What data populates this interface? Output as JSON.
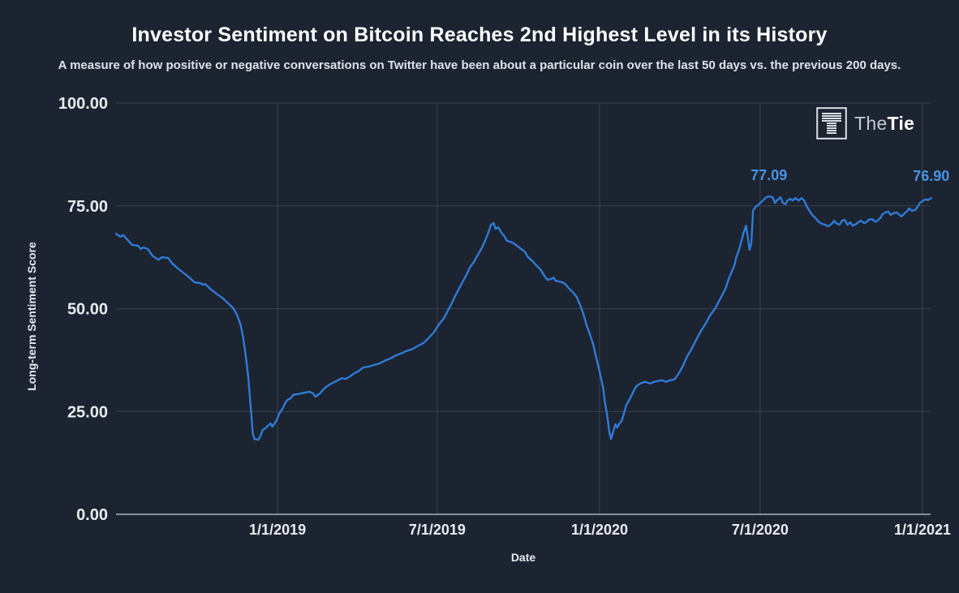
{
  "header": {
    "title": "Investor Sentiment on Bitcoin Reaches 2nd Highest Level in its History",
    "subtitle": "A measure of how positive or negative conversations on Twitter have been about a particular coin over the last 50 days vs. the previous 200 days."
  },
  "logo": {
    "icon": "striped-t-square-icon",
    "the_label": "The",
    "tie_label": "Tie"
  },
  "colors": {
    "background": "#1c2331",
    "line": "#2f7cd6",
    "annotation": "#4795e2",
    "grid": "#3a4250",
    "axis_line": "#c9ced6",
    "tick_text": "#e9ebee",
    "title_text": "#ffffff"
  },
  "chart_data": {
    "type": "line",
    "title": "Investor Sentiment on Bitcoin Reaches 2nd Highest Level in its History",
    "xlabel": "Date",
    "ylabel": "Long-term Sentiment Score",
    "ylim": [
      0,
      100
    ],
    "grid": true,
    "legend": "none",
    "x_range": [
      "2018-07-01",
      "2021-01-13"
    ],
    "y_ticks": [
      {
        "value": 0,
        "label": "0.00"
      },
      {
        "value": 25,
        "label": "25.00"
      },
      {
        "value": 50,
        "label": "50.00"
      },
      {
        "value": 75,
        "label": "75.00"
      },
      {
        "value": 100,
        "label": "100.00"
      }
    ],
    "x_ticks": [
      {
        "date": "2019-01-01",
        "label": "1/1/2019"
      },
      {
        "date": "2019-07-01",
        "label": "7/1/2019"
      },
      {
        "date": "2020-01-01",
        "label": "1/1/2020"
      },
      {
        "date": "2020-07-01",
        "label": "7/1/2020"
      },
      {
        "date": "2021-01-01",
        "label": "1/1/2021"
      }
    ],
    "annotations": [
      {
        "label": "77.09",
        "date": "2020-07-11",
        "value": 77.09
      },
      {
        "label": "76.90",
        "date": "2021-01-11",
        "value": 76.9
      }
    ],
    "series": [
      {
        "name": "Long-term Sentiment Score",
        "points": [
          [
            "2018-07-02",
            68.2
          ],
          [
            "2018-07-07",
            67.5
          ],
          [
            "2018-07-10",
            67.9
          ],
          [
            "2018-07-16",
            66.5
          ],
          [
            "2018-07-20",
            65.5
          ],
          [
            "2018-07-27",
            65.3
          ],
          [
            "2018-07-30",
            64.5
          ],
          [
            "2018-08-02",
            64.9
          ],
          [
            "2018-08-07",
            64.5
          ],
          [
            "2018-08-12",
            62.9
          ],
          [
            "2018-08-19",
            61.9
          ],
          [
            "2018-08-23",
            62.5
          ],
          [
            "2018-08-30",
            62.3
          ],
          [
            "2018-09-04",
            60.9
          ],
          [
            "2018-09-11",
            59.6
          ],
          [
            "2018-09-17",
            58.6
          ],
          [
            "2018-09-23",
            57.6
          ],
          [
            "2018-09-29",
            56.4
          ],
          [
            "2018-10-06",
            56.2
          ],
          [
            "2018-10-08",
            55.8
          ],
          [
            "2018-10-11",
            56.0
          ],
          [
            "2018-10-18",
            54.6
          ],
          [
            "2018-10-24",
            53.6
          ],
          [
            "2018-10-30",
            52.7
          ],
          [
            "2018-11-05",
            51.5
          ],
          [
            "2018-11-12",
            50.1
          ],
          [
            "2018-11-16",
            48.5
          ],
          [
            "2018-11-20",
            46.2
          ],
          [
            "2018-11-23",
            43.0
          ],
          [
            "2018-11-26",
            38.5
          ],
          [
            "2018-11-29",
            33.0
          ],
          [
            "2018-12-01",
            27.5
          ],
          [
            "2018-12-03",
            22.5
          ],
          [
            "2018-12-04",
            19.5
          ],
          [
            "2018-12-06",
            18.3
          ],
          [
            "2018-12-10",
            18.1
          ],
          [
            "2018-12-13",
            19.2
          ],
          [
            "2018-12-15",
            20.5
          ],
          [
            "2018-12-18",
            20.9
          ],
          [
            "2018-12-21",
            21.5
          ],
          [
            "2018-12-24",
            22.1
          ],
          [
            "2018-12-26",
            21.3
          ],
          [
            "2018-12-28",
            21.9
          ],
          [
            "2018-12-31",
            22.9
          ],
          [
            "2019-01-03",
            24.5
          ],
          [
            "2019-01-07",
            25.8
          ],
          [
            "2019-01-09",
            26.8
          ],
          [
            "2019-01-12",
            27.8
          ],
          [
            "2019-01-16",
            28.2
          ],
          [
            "2019-01-19",
            29.1
          ],
          [
            "2019-01-23",
            29.2
          ],
          [
            "2019-01-28",
            29.4
          ],
          [
            "2019-02-01",
            29.6
          ],
          [
            "2019-02-06",
            29.8
          ],
          [
            "2019-02-10",
            29.4
          ],
          [
            "2019-02-13",
            28.6
          ],
          [
            "2019-02-18",
            29.4
          ],
          [
            "2019-02-24",
            30.8
          ],
          [
            "2019-03-03",
            31.8
          ],
          [
            "2019-03-08",
            32.3
          ],
          [
            "2019-03-15",
            33.1
          ],
          [
            "2019-03-19",
            32.9
          ],
          [
            "2019-03-24",
            33.5
          ],
          [
            "2019-03-29",
            34.3
          ],
          [
            "2019-04-02",
            34.7
          ],
          [
            "2019-04-08",
            35.7
          ],
          [
            "2019-04-14",
            35.9
          ],
          [
            "2019-04-20",
            36.3
          ],
          [
            "2019-04-27",
            36.7
          ],
          [
            "2019-05-02",
            37.3
          ],
          [
            "2019-05-09",
            37.9
          ],
          [
            "2019-05-15",
            38.6
          ],
          [
            "2019-05-21",
            39.1
          ],
          [
            "2019-05-27",
            39.7
          ],
          [
            "2019-06-03",
            40.2
          ],
          [
            "2019-06-08",
            40.8
          ],
          [
            "2019-06-15",
            41.6
          ],
          [
            "2019-06-21",
            42.8
          ],
          [
            "2019-06-27",
            44.2
          ],
          [
            "2019-07-03",
            46.2
          ],
          [
            "2019-07-08",
            47.5
          ],
          [
            "2019-07-12",
            49.1
          ],
          [
            "2019-07-17",
            51.1
          ],
          [
            "2019-07-21",
            52.9
          ],
          [
            "2019-07-26",
            55.0
          ],
          [
            "2019-07-31",
            57.0
          ],
          [
            "2019-08-04",
            58.6
          ],
          [
            "2019-08-07",
            60.0
          ],
          [
            "2019-08-12",
            61.5
          ],
          [
            "2019-08-16",
            63.1
          ],
          [
            "2019-08-21",
            64.9
          ],
          [
            "2019-08-25",
            66.9
          ],
          [
            "2019-08-28",
            68.5
          ],
          [
            "2019-08-31",
            70.4
          ],
          [
            "2019-09-03",
            70.8
          ],
          [
            "2019-09-05",
            69.4
          ],
          [
            "2019-09-08",
            69.8
          ],
          [
            "2019-09-12",
            68.4
          ],
          [
            "2019-09-15",
            67.7
          ],
          [
            "2019-09-18",
            66.5
          ],
          [
            "2019-09-24",
            66.1
          ],
          [
            "2019-09-28",
            65.5
          ],
          [
            "2019-10-03",
            64.7
          ],
          [
            "2019-10-08",
            63.9
          ],
          [
            "2019-10-12",
            62.5
          ],
          [
            "2019-10-17",
            61.6
          ],
          [
            "2019-10-21",
            60.6
          ],
          [
            "2019-10-26",
            59.5
          ],
          [
            "2019-10-31",
            57.8
          ],
          [
            "2019-11-03",
            57.0
          ],
          [
            "2019-11-07",
            57.2
          ],
          [
            "2019-11-10",
            57.6
          ],
          [
            "2019-11-12",
            56.8
          ],
          [
            "2019-11-16",
            56.6
          ],
          [
            "2019-11-20",
            56.4
          ],
          [
            "2019-11-23",
            56.0
          ],
          [
            "2019-11-27",
            55.0
          ],
          [
            "2019-12-02",
            53.9
          ],
          [
            "2019-12-06",
            52.9
          ],
          [
            "2019-12-10",
            50.9
          ],
          [
            "2019-12-14",
            48.5
          ],
          [
            "2019-12-17",
            46.2
          ],
          [
            "2019-12-21",
            43.8
          ],
          [
            "2019-12-25",
            41.2
          ],
          [
            "2019-12-28",
            38.3
          ],
          [
            "2020-01-01",
            34.7
          ],
          [
            "2020-01-05",
            30.8
          ],
          [
            "2020-01-07",
            27.4
          ],
          [
            "2020-01-10",
            23.5
          ],
          [
            "2020-01-12",
            20.1
          ],
          [
            "2020-01-14",
            18.3
          ],
          [
            "2020-01-17",
            20.5
          ],
          [
            "2020-01-19",
            21.9
          ],
          [
            "2020-01-21",
            21.1
          ],
          [
            "2020-01-23",
            21.9
          ],
          [
            "2020-01-26",
            22.7
          ],
          [
            "2020-01-29",
            24.8
          ],
          [
            "2020-01-31",
            26.4
          ],
          [
            "2020-02-03",
            27.6
          ],
          [
            "2020-02-07",
            29.2
          ],
          [
            "2020-02-10",
            30.6
          ],
          [
            "2020-02-13",
            31.4
          ],
          [
            "2020-02-18",
            32.0
          ],
          [
            "2020-02-22",
            32.2
          ],
          [
            "2020-02-27",
            31.8
          ],
          [
            "2020-03-03",
            32.2
          ],
          [
            "2020-03-07",
            32.4
          ],
          [
            "2020-03-12",
            32.6
          ],
          [
            "2020-03-16",
            32.2
          ],
          [
            "2020-03-21",
            32.6
          ],
          [
            "2020-03-26",
            32.8
          ],
          [
            "2020-03-31",
            34.3
          ],
          [
            "2020-04-05",
            36.3
          ],
          [
            "2020-04-09",
            38.3
          ],
          [
            "2020-04-14",
            40.1
          ],
          [
            "2020-04-19",
            42.2
          ],
          [
            "2020-04-25",
            44.6
          ],
          [
            "2020-05-01",
            46.6
          ],
          [
            "2020-05-05",
            48.3
          ],
          [
            "2020-05-11",
            50.0
          ],
          [
            "2020-05-15",
            51.7
          ],
          [
            "2020-05-19",
            53.3
          ],
          [
            "2020-05-23",
            55.0
          ],
          [
            "2020-05-26",
            57.0
          ],
          [
            "2020-05-29",
            58.6
          ],
          [
            "2020-06-02",
            60.6
          ],
          [
            "2020-06-04",
            62.5
          ],
          [
            "2020-06-07",
            64.3
          ],
          [
            "2020-06-10",
            66.5
          ],
          [
            "2020-06-12",
            68.3
          ],
          [
            "2020-06-15",
            70.2
          ],
          [
            "2020-06-17",
            67.3
          ],
          [
            "2020-06-19",
            64.3
          ],
          [
            "2020-06-21",
            65.8
          ],
          [
            "2020-06-23",
            73.8
          ],
          [
            "2020-06-26",
            74.8
          ],
          [
            "2020-06-29",
            75.2
          ],
          [
            "2020-07-03",
            76.1
          ],
          [
            "2020-07-08",
            77.1
          ],
          [
            "2020-07-11",
            77.3
          ],
          [
            "2020-07-15",
            77.1
          ],
          [
            "2020-07-18",
            75.7
          ],
          [
            "2020-07-20",
            76.3
          ],
          [
            "2020-07-24",
            77.1
          ],
          [
            "2020-07-27",
            75.7
          ],
          [
            "2020-07-30",
            75.4
          ],
          [
            "2020-08-01",
            76.3
          ],
          [
            "2020-08-04",
            76.7
          ],
          [
            "2020-08-07",
            76.3
          ],
          [
            "2020-08-10",
            76.9
          ],
          [
            "2020-08-14",
            76.3
          ],
          [
            "2020-08-17",
            76.9
          ],
          [
            "2020-08-20",
            76.3
          ],
          [
            "2020-08-23",
            74.8
          ],
          [
            "2020-08-26",
            73.8
          ],
          [
            "2020-08-29",
            72.8
          ],
          [
            "2020-09-02",
            72.0
          ],
          [
            "2020-09-05",
            71.2
          ],
          [
            "2020-09-09",
            70.6
          ],
          [
            "2020-09-13",
            70.4
          ],
          [
            "2020-09-16",
            70.0
          ],
          [
            "2020-09-20",
            70.6
          ],
          [
            "2020-09-23",
            71.4
          ],
          [
            "2020-09-25",
            70.8
          ],
          [
            "2020-09-29",
            70.4
          ],
          [
            "2020-10-02",
            71.4
          ],
          [
            "2020-10-05",
            71.6
          ],
          [
            "2020-10-08",
            70.4
          ],
          [
            "2020-10-11",
            71.0
          ],
          [
            "2020-10-14",
            70.2
          ],
          [
            "2020-10-18",
            70.6
          ],
          [
            "2020-10-20",
            71.0
          ],
          [
            "2020-10-23",
            71.4
          ],
          [
            "2020-10-27",
            70.8
          ],
          [
            "2020-10-29",
            71.0
          ],
          [
            "2020-11-01",
            71.6
          ],
          [
            "2020-11-05",
            71.8
          ],
          [
            "2020-11-08",
            71.2
          ],
          [
            "2020-11-10",
            71.2
          ],
          [
            "2020-11-14",
            72.0
          ],
          [
            "2020-11-17",
            73.0
          ],
          [
            "2020-11-20",
            73.4
          ],
          [
            "2020-11-23",
            73.6
          ],
          [
            "2020-11-26",
            72.8
          ],
          [
            "2020-11-29",
            73.2
          ],
          [
            "2020-12-03",
            73.4
          ],
          [
            "2020-12-05",
            73.0
          ],
          [
            "2020-12-08",
            72.4
          ],
          [
            "2020-12-12",
            73.2
          ],
          [
            "2020-12-15",
            73.8
          ],
          [
            "2020-12-17",
            74.4
          ],
          [
            "2020-12-20",
            73.8
          ],
          [
            "2020-12-24",
            74.0
          ],
          [
            "2020-12-26",
            74.6
          ],
          [
            "2020-12-29",
            75.7
          ],
          [
            "2021-01-02",
            76.3
          ],
          [
            "2021-01-05",
            76.6
          ],
          [
            "2021-01-07",
            76.4
          ],
          [
            "2021-01-11",
            76.9
          ]
        ]
      }
    ]
  }
}
